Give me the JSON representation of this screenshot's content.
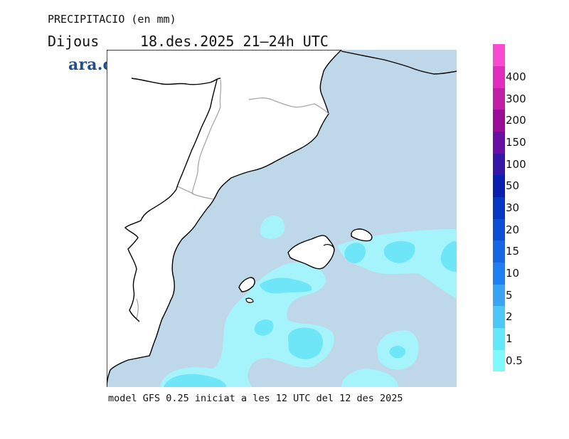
{
  "header": {
    "variable": "PRECIPITACIO (en mm)",
    "day": "Dijous",
    "period": "18.des.2025 21–24h UTC"
  },
  "logo": {
    "text": "ara.cat"
  },
  "footer": {
    "model_info": "model GFS 0.25 iniciat a les 12 UTC del 12 des 2025"
  },
  "legend": {
    "labels": [
      "0.5",
      "1",
      "2",
      "5",
      "10",
      "15",
      "20",
      "30",
      "50",
      "100",
      "150",
      "200",
      "300",
      "400"
    ],
    "colors": [
      "#7df9ff",
      "#62e8f7",
      "#4dc7f5",
      "#3aa3f2",
      "#1f7ff0",
      "#1466e3",
      "#0d4ed6",
      "#0836c4",
      "#0a1fb0",
      "#3516a6",
      "#6a0fa3",
      "#9a0d96",
      "#c21fa7",
      "#e22cbe",
      "#f94bd0"
    ]
  },
  "map_colors": {
    "sea": "#bed8ea",
    "land": "#ffffff",
    "precip_light": "#a6f4fb",
    "precip_mid": "#6fe6f7"
  }
}
